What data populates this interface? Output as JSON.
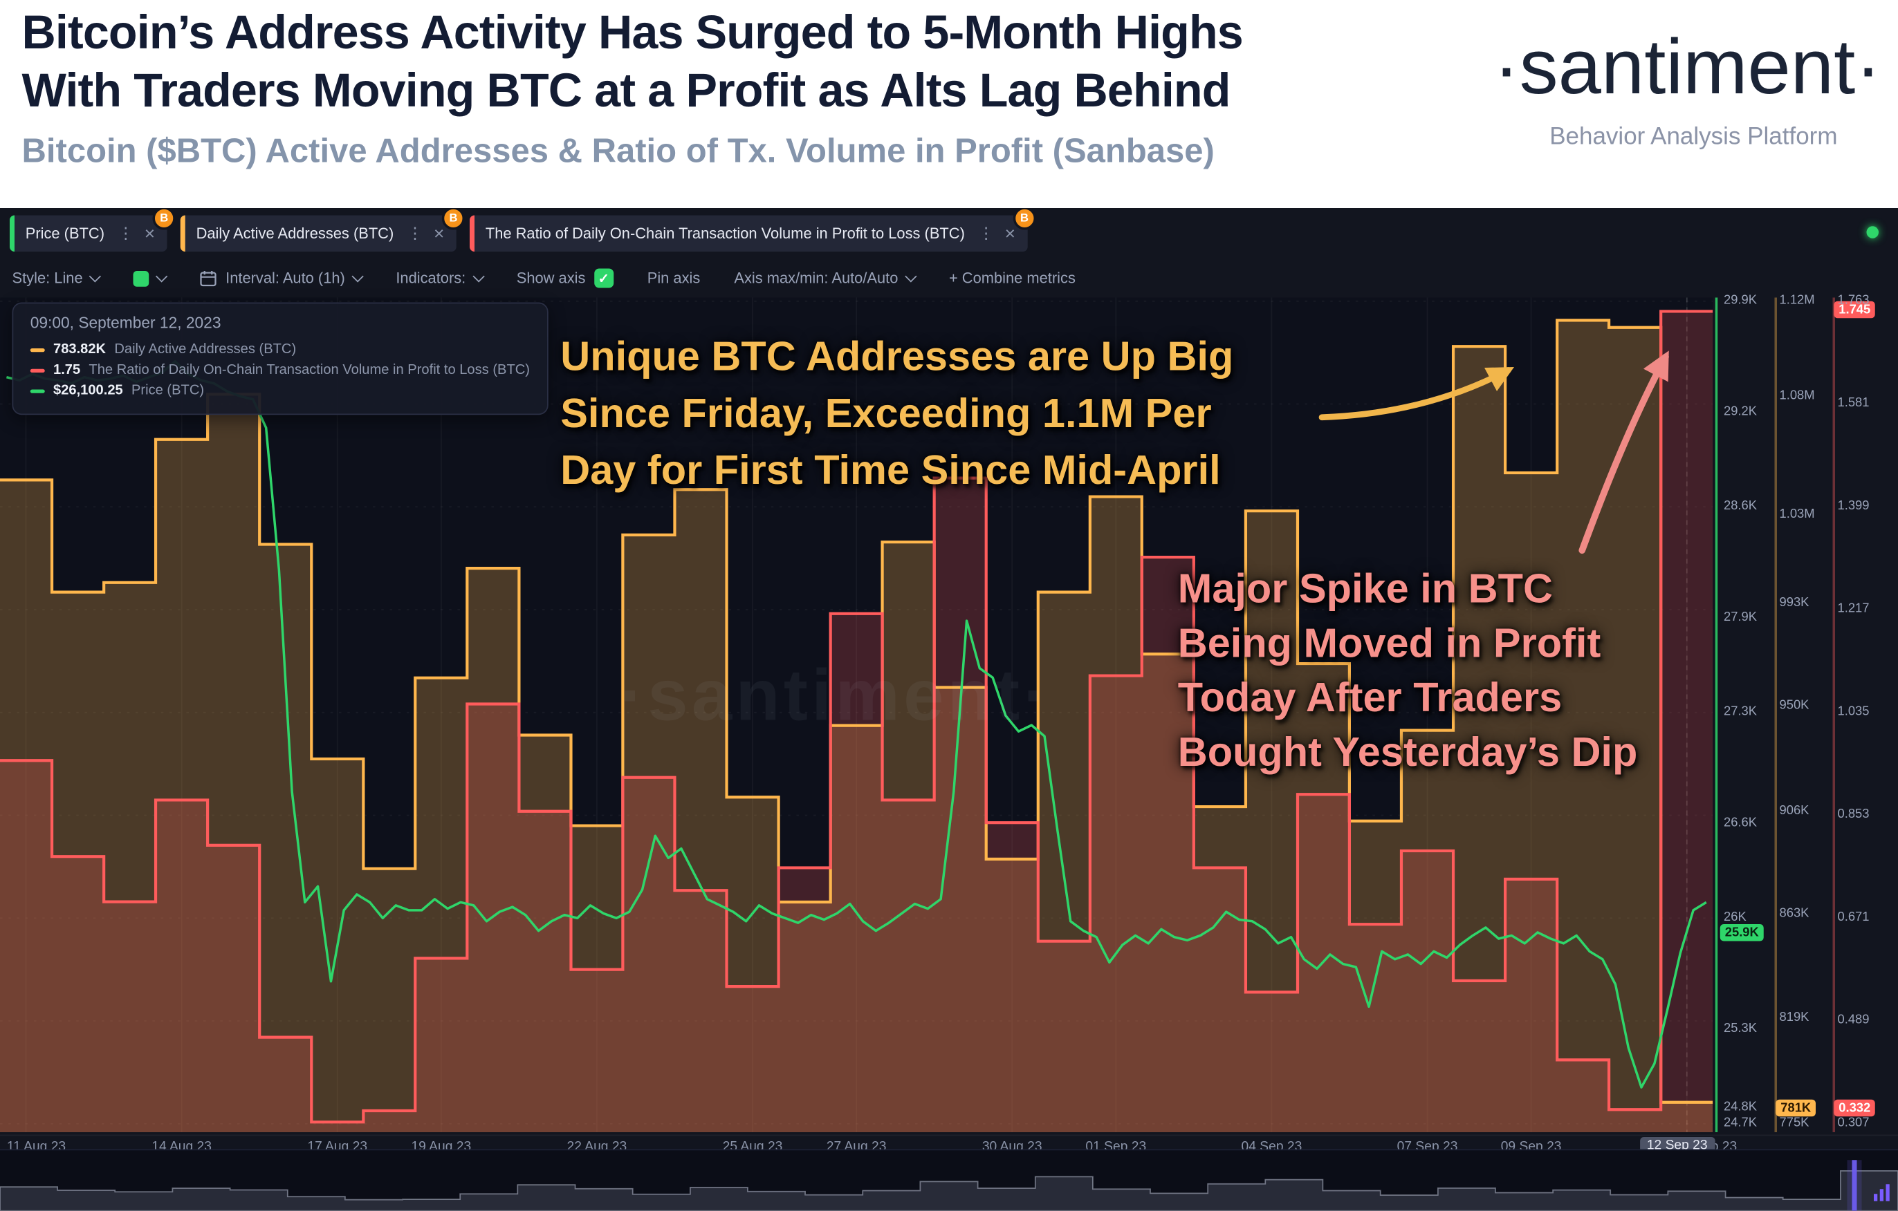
{
  "header": {
    "title_line1": "Bitcoin’s Address Activity Has Surged to 5-Month Highs",
    "title_line2": "With Traders Moving BTC at a Profit as Alts Lag Behind",
    "subtitle": "Bitcoin ($BTC) Active Addresses & Ratio of Tx. Volume in Profit (Sanbase)",
    "brand": "·santiment·",
    "brand_tagline": "Behavior Analysis Platform"
  },
  "colors": {
    "price_green": "#2fd66a",
    "addresses_orange": "#ffb74d",
    "ratio_red": "#ff5c5c",
    "annotation_yellow": "#f6bc55",
    "annotation_pink": "#f7918b",
    "bitcoin_badge_orange": "#f7931a",
    "chart_background": "#0d101b"
  },
  "icons": {
    "b_badge": "B",
    "menu_dots": "⋮",
    "close": "×",
    "check": "✓"
  },
  "tabs": [
    {
      "label": "Price (BTC)",
      "color": "#2fd66a"
    },
    {
      "label": "Daily Active Addresses (BTC)",
      "color": "#ffb74d"
    },
    {
      "label": "The Ratio of Daily On-Chain Transaction Volume in Profit to Loss (BTC)",
      "color": "#ff5c5c"
    }
  ],
  "toolbar": {
    "style_label": "Style: Line",
    "interval_label": "Interval: Auto (1h)",
    "indicators_label": "Indicators:",
    "show_axis_label": "Show axis",
    "pin_axis_label": "Pin axis",
    "axis_maxmin_label": "Axis max/min: Auto/Auto",
    "combine_label": "+ Combine metrics"
  },
  "tooltip": {
    "datetime": "09:00, September 12, 2023",
    "rows": [
      {
        "value": "783.82K",
        "label": "Daily Active Addresses (BTC)",
        "color": "#ffb74d"
      },
      {
        "value": "1.75",
        "label": "The Ratio of Daily On-Chain Transaction Volume in Profit to Loss (BTC)",
        "color": "#ff5c5c"
      },
      {
        "value": "$26,100.25",
        "label": "Price (BTC)",
        "color": "#2fd66a"
      }
    ]
  },
  "annotations": {
    "addresses_note_lines": [
      "Unique BTC Addresses are Up Big",
      "Since Friday, Exceeding 1.1M Per",
      "Day for First Time Since Mid-April"
    ],
    "profit_note_lines": [
      "Major Spike in BTC",
      "Being Moved in Profit",
      "Today After Traders",
      "Bought Yesterday’s Dip"
    ]
  },
  "watermark": "·santiment·",
  "x_crosshair_remnant": "p 23",
  "chart_data": {
    "type": "line",
    "x_range": {
      "start": "11 Aug 23",
      "end": "12 Sep 23",
      "days": 33
    },
    "x_ticks": [
      {
        "label": "11 Aug 23",
        "day": 0
      },
      {
        "label": "14 Aug 23",
        "day": 3
      },
      {
        "label": "17 Aug 23",
        "day": 6
      },
      {
        "label": "19 Aug 23",
        "day": 8
      },
      {
        "label": "22 Aug 23",
        "day": 11
      },
      {
        "label": "25 Aug 23",
        "day": 14
      },
      {
        "label": "27 Aug 23",
        "day": 16
      },
      {
        "label": "30 Aug 23",
        "day": 19
      },
      {
        "label": "01 Sep 23",
        "day": 21
      },
      {
        "label": "04 Sep 23",
        "day": 24
      },
      {
        "label": "07 Sep 23",
        "day": 27
      },
      {
        "label": "09 Sep 23",
        "day": 29
      },
      {
        "label": "12 Sep 23",
        "day": 32,
        "highlight": true
      }
    ],
    "series": [
      {
        "name": "Daily Active Addresses (BTC)",
        "style": "step",
        "color": "#ffb74d",
        "unit": "thousand addresses",
        "axis_min": 775,
        "axis_max": 1120,
        "values": [
          1045,
          998,
          1002,
          1062,
          1081,
          1018,
          928,
          882,
          962,
          1008,
          938,
          900,
          1022,
          1041,
          912,
          868,
          942,
          1019,
          958,
          886,
          998,
          1038,
          972,
          908,
          1032,
          968,
          902,
          940,
          1101,
          1048,
          1112,
          1109,
          784
        ]
      },
      {
        "name": "The Ratio of Daily On-Chain Transaction Volume in Profit to Loss (BTC)",
        "style": "step",
        "color": "#ff5c5c",
        "unit": "ratio",
        "axis_min": 0.307,
        "axis_max": 1.763,
        "values": [
          0.95,
          0.78,
          0.7,
          0.88,
          0.8,
          0.46,
          0.31,
          0.33,
          0.6,
          1.05,
          0.86,
          0.58,
          0.92,
          0.72,
          0.55,
          0.76,
          1.21,
          0.88,
          1.45,
          0.84,
          0.63,
          1.1,
          1.31,
          0.76,
          0.54,
          0.89,
          0.66,
          0.79,
          0.56,
          0.74,
          0.42,
          0.332,
          1.745
        ]
      },
      {
        "name": "Price (BTC)",
        "style": "line",
        "color": "#2fd66a",
        "unit": "thousand USD",
        "axis_min": 24.7,
        "axis_max": 29.9,
        "points_per_day": 4,
        "values": [
          29.42,
          29.4,
          29.44,
          29.41,
          29.4,
          29.38,
          29.42,
          29.4,
          29.41,
          29.43,
          29.39,
          29.42,
          29.45,
          29.52,
          29.44,
          29.4,
          29.38,
          29.33,
          29.3,
          29.28,
          29.1,
          28.2,
          26.8,
          26.1,
          26.2,
          25.6,
          26.05,
          26.15,
          26.1,
          26.0,
          26.08,
          26.05,
          26.05,
          26.12,
          26.06,
          26.1,
          26.08,
          25.98,
          26.04,
          26.07,
          26.02,
          25.92,
          25.98,
          26.02,
          26.0,
          26.08,
          26.03,
          26.0,
          26.04,
          26.18,
          26.52,
          26.38,
          26.44,
          26.28,
          26.12,
          26.08,
          26.04,
          25.98,
          26.08,
          26.03,
          26.0,
          25.97,
          26.02,
          25.99,
          26.03,
          26.09,
          25.98,
          25.92,
          25.97,
          26.03,
          26.09,
          26.06,
          26.12,
          26.8,
          27.88,
          27.58,
          27.52,
          27.28,
          27.18,
          27.22,
          27.15,
          26.55,
          25.98,
          25.92,
          25.88,
          25.72,
          25.83,
          25.89,
          25.84,
          25.93,
          25.88,
          25.86,
          25.89,
          25.94,
          26.04,
          25.99,
          25.98,
          25.93,
          25.84,
          25.88,
          25.74,
          25.68,
          25.77,
          25.71,
          25.69,
          25.44,
          25.79,
          25.74,
          25.77,
          25.71,
          25.79,
          25.75,
          25.83,
          25.89,
          25.94,
          25.87,
          25.89,
          25.84,
          25.91,
          25.87,
          25.84,
          25.89,
          25.79,
          25.74,
          25.58,
          25.18,
          24.93,
          25.08,
          25.42,
          25.78,
          26.05,
          26.1
        ]
      }
    ],
    "axes": {
      "price_ticks": [
        {
          "label": "29.9K",
          "v": 29.9
        },
        {
          "label": "29.2K",
          "v": 29.2
        },
        {
          "label": "28.6K",
          "v": 28.6
        },
        {
          "label": "27.9K",
          "v": 27.9
        },
        {
          "label": "27.3K",
          "v": 27.3
        },
        {
          "label": "26.6K",
          "v": 26.6
        },
        {
          "label": "26K",
          "v": 26.0
        },
        {
          "label": "25.3K",
          "v": 25.3
        },
        {
          "label": "24.8K",
          "v": 24.8
        },
        {
          "label": "24.7K",
          "v": 24.7
        }
      ],
      "addresses_ticks": [
        {
          "label": "1.12M",
          "v": 1120
        },
        {
          "label": "1.08M",
          "v": 1080
        },
        {
          "label": "1.03M",
          "v": 1030
        },
        {
          "label": "993K",
          "v": 993
        },
        {
          "label": "950K",
          "v": 950
        },
        {
          "label": "906K",
          "v": 906
        },
        {
          "label": "863K",
          "v": 863
        },
        {
          "label": "819K",
          "v": 819
        },
        {
          "label": "775K",
          "v": 775
        }
      ],
      "ratio_ticks": [
        {
          "label": "1.763",
          "v": 1.763
        },
        {
          "label": "1.581",
          "v": 1.581
        },
        {
          "label": "1.399",
          "v": 1.399
        },
        {
          "label": "1.217",
          "v": 1.217
        },
        {
          "label": "1.035",
          "v": 1.035
        },
        {
          "label": "0.853",
          "v": 0.853
        },
        {
          "label": "0.671",
          "v": 0.671
        },
        {
          "label": "0.489",
          "v": 0.489
        },
        {
          "label": "0.307",
          "v": 0.307
        }
      ],
      "badges": {
        "price": {
          "label": "25.9K",
          "value": 25.9,
          "color": "#2fd66a"
        },
        "addresses": {
          "label": "781K",
          "value": 781,
          "color": "#ffb74d"
        },
        "ratio_top": {
          "label": "1.745",
          "value": 1.745,
          "color": "#ff5c5c"
        },
        "ratio_bottom": {
          "label": "0.332",
          "value": 0.332,
          "color": "#ff5c5c"
        }
      }
    }
  }
}
